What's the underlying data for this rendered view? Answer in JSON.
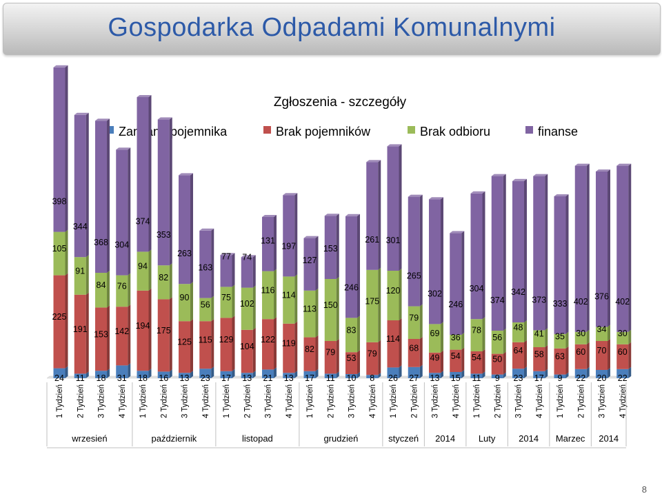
{
  "header": {
    "title": "Gospodarka Odpadami Komunalnymi"
  },
  "footer": {
    "page_number": "8"
  },
  "chart_data": {
    "type": "bar",
    "stacked": true,
    "title": "Zgłoszenia - szczegóły",
    "legend_position": "top",
    "grid": false,
    "ylim": [
      0,
      800
    ],
    "categories": [
      "1 Tydzień",
      "2 Tydzień",
      "3 Tydzień",
      "4 Tydzień",
      "1 Tydzień",
      "2 Tydzień",
      "3 Tydzień",
      "4 Tydzień",
      "1 Tydzień",
      "2 Tydzień",
      "3 Tydzień",
      "4 Tydzień",
      "1 Tydzień",
      "2 Tydzień",
      "3 Tydzień",
      "4 Tydzień",
      "1 Tydzień",
      "2 Tydzień",
      "3 Tydzień",
      "4 Tydzień",
      "1 Tydzień",
      "2 Tydzień",
      "3 Tydzień",
      "4 Tydzień",
      "1 Tydzień",
      "2 Tydzień",
      "3 Tydzień",
      "4 Tydzień"
    ],
    "groups": [
      {
        "label": "wrzesień",
        "count": 4
      },
      {
        "label": "październik",
        "count": 4
      },
      {
        "label": "listopad",
        "count": 4
      },
      {
        "label": "grudzień",
        "count": 4
      },
      {
        "label": "styczeń",
        "count": 2
      },
      {
        "label": "2014",
        "count": 2
      },
      {
        "label": "Luty",
        "count": 2
      },
      {
        "label": "2014",
        "count": 2
      },
      {
        "label": "Marzec",
        "count": 2
      },
      {
        "label": "2014",
        "count": 2
      }
    ],
    "series": [
      {
        "name": "Zamiana pojemnika",
        "color": "#4a7ebb",
        "values": [
          24,
          11,
          18,
          31,
          18,
          16,
          13,
          23,
          17,
          13,
          21,
          13,
          17,
          11,
          10,
          8,
          26,
          27,
          13,
          15,
          11,
          9,
          23,
          17,
          9,
          22,
          20,
          22
        ]
      },
      {
        "name": "Brak pojemników",
        "color": "#c0504d",
        "values": [
          225,
          191,
          153,
          142,
          194,
          175,
          125,
          115,
          129,
          104,
          122,
          119,
          82,
          79,
          53,
          79,
          114,
          68,
          49,
          54,
          54,
          50,
          64,
          58,
          63,
          60,
          70,
          60
        ]
      },
      {
        "name": "Brak odbioru",
        "color": "#9bbb59",
        "values": [
          105,
          91,
          84,
          76,
          94,
          82,
          90,
          56,
          75,
          102,
          116,
          114,
          113,
          150,
          83,
          175,
          120,
          79,
          69,
          36,
          78,
          56,
          48,
          41,
          35,
          30,
          34,
          30
        ]
      },
      {
        "name": "finanse",
        "color": "#8064a2",
        "values": [
          398,
          344,
          368,
          304,
          374,
          353,
          263,
          163,
          77,
          74,
          131,
          197,
          127,
          153,
          246,
          261,
          301,
          265,
          302,
          246,
          304,
          374,
          342,
          373,
          333,
          402,
          376,
          402
        ]
      }
    ]
  }
}
